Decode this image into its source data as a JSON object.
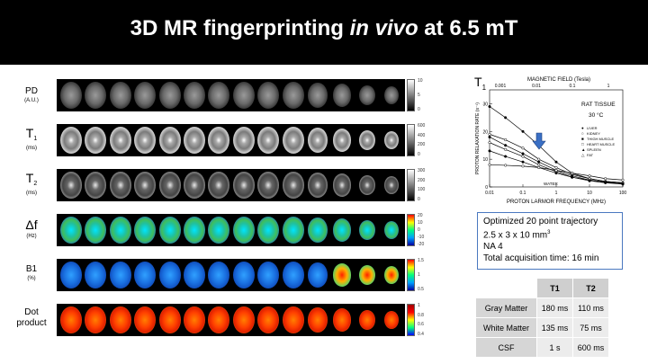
{
  "header": {
    "title_pre": "3D MR fingerprinting ",
    "title_italic": "in vivo",
    "title_post": " at 6.5 mT"
  },
  "rows": [
    {
      "label": "PD",
      "sub": "",
      "unit": "(A.U.)",
      "map": "gray",
      "cb_ticks": [
        "10",
        "5",
        "0"
      ]
    },
    {
      "label": "T",
      "sub": "1",
      "unit": "(ms)",
      "map": "gray-t1",
      "cb_ticks": [
        "600",
        "400",
        "200",
        "0"
      ]
    },
    {
      "label": "T",
      "sub": "2",
      "unit": "(ms)",
      "map": "gray-t2",
      "cb_ticks": [
        "300",
        "200",
        "100",
        "0"
      ]
    },
    {
      "label": "Δf",
      "sub": "",
      "unit": "(Hz)",
      "map": "jet-df",
      "cb_ticks": [
        "20",
        "10",
        "0",
        "-10",
        "-20"
      ]
    },
    {
      "label": "B1",
      "sub": "",
      "unit": "(%)",
      "map": "jet-b1",
      "cb_ticks": [
        "1.5",
        "1",
        "0.5"
      ]
    },
    {
      "label": "Dot",
      "sub": "",
      "unit": "product",
      "map": "jet-dot",
      "cb_ticks": [
        "1",
        "0.8",
        "0.6",
        "0.4"
      ]
    }
  ],
  "graph": {
    "corner_label": "T",
    "corner_sub": "1",
    "top_axis_title": "MAGNETIC FIELD (Tesla)",
    "top_ticks": [
      "0.001",
      "0.01",
      "0.1",
      "1"
    ],
    "bottom_ticks": [
      "0.01",
      "0.1",
      "1",
      "10",
      "100"
    ],
    "xlabel": "PROTON LARMOR FREQUENCY (MHz)",
    "ylabel": "PROTON RELAXATION RATE (s⁻¹)",
    "y_ticks": [
      "30",
      "20",
      "10",
      "0"
    ],
    "annotation_1": "RAT TISSUE",
    "annotation_2": "30 °C",
    "legend": [
      "LIVER",
      "KIDNEY",
      "THIGH MUSCLE",
      "HEART MUSCLE",
      "SPLEEN",
      "FAT"
    ],
    "water_label": "WATER",
    "arrow_color": "#3a6fc4",
    "series": [
      {
        "name": "LIVER",
        "x": [
          0.01,
          0.03,
          0.1,
          0.3,
          1,
          3,
          10,
          30,
          100
        ],
        "y": [
          29,
          25,
          20,
          15,
          9,
          5,
          3,
          2,
          1.5
        ]
      },
      {
        "name": "KIDNEY",
        "x": [
          0.01,
          0.03,
          0.1,
          0.3,
          1,
          3,
          10,
          30,
          100
        ],
        "y": [
          19,
          17,
          14,
          10,
          7,
          4.5,
          3,
          2,
          1.5
        ]
      },
      {
        "name": "THIGH MUSCLE",
        "x": [
          0.01,
          0.03,
          0.1,
          0.3,
          1,
          3,
          10,
          30,
          100
        ],
        "y": [
          18,
          15,
          12,
          9,
          6,
          4,
          2.5,
          1.8,
          1.2
        ]
      },
      {
        "name": "HEART MUSCLE",
        "x": [
          0.01,
          0.03,
          0.1,
          0.3,
          1,
          3,
          10,
          30,
          100
        ],
        "y": [
          16,
          13.5,
          11,
          8,
          5.5,
          3.5,
          2.5,
          1.7,
          1.2
        ]
      },
      {
        "name": "SPLEEN",
        "x": [
          0.01,
          0.03,
          0.1,
          0.3,
          1,
          3,
          10,
          30,
          100
        ],
        "y": [
          13,
          11,
          9,
          7,
          5,
          3.5,
          2.2,
          1.5,
          1
        ]
      },
      {
        "name": "FAT",
        "x": [
          0.01,
          0.03,
          0.1,
          0.3,
          1,
          3,
          10,
          30,
          100
        ],
        "y": [
          8,
          7.8,
          7.5,
          7,
          6,
          5,
          4,
          3,
          2.5
        ]
      }
    ],
    "ylim": [
      0,
      35
    ]
  },
  "info": {
    "line1": "Optimized 20 point trajectory",
    "line2": "2.5 x 3 x 10 mm",
    "line2_sup": "3",
    "line3": "NA 4",
    "line4": "Total acquisition time: 16 min"
  },
  "table": {
    "headers": [
      "",
      "T1",
      "T2"
    ],
    "rows": [
      [
        "Gray Matter",
        "180 ms",
        "110 ms"
      ],
      [
        "White Matter",
        "135 ms",
        "75 ms"
      ],
      [
        "CSF",
        "1 s",
        "600 ms"
      ]
    ]
  }
}
